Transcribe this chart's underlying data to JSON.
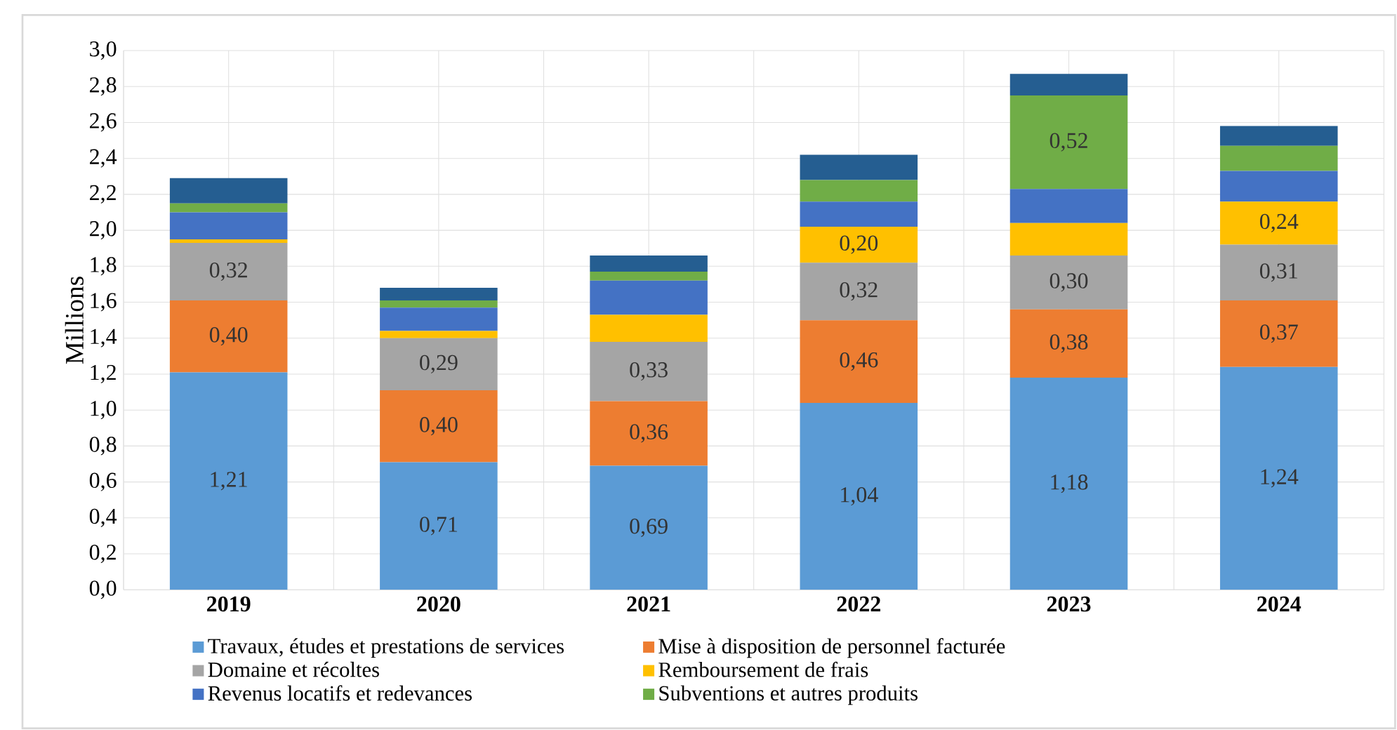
{
  "chart_data": {
    "type": "bar",
    "stacked": true,
    "ylabel": "Millions",
    "categories": [
      "2019",
      "2020",
      "2021",
      "2022",
      "2023",
      "2024"
    ],
    "ylim": [
      0,
      3.0
    ],
    "yticks": [
      {
        "value": 0,
        "label": "0,0"
      },
      {
        "value": 0.2,
        "label": "0,2"
      },
      {
        "value": 0.4,
        "label": "0,4"
      },
      {
        "value": 0.6,
        "label": "0,6"
      },
      {
        "value": 0.8,
        "label": "0,8"
      },
      {
        "value": 1.0,
        "label": "1,0"
      },
      {
        "value": 1.2,
        "label": "1,2"
      },
      {
        "value": 1.4,
        "label": "1,4"
      },
      {
        "value": 1.6,
        "label": "1,6"
      },
      {
        "value": 1.8,
        "label": "1,8"
      },
      {
        "value": 2.0,
        "label": "2,0"
      },
      {
        "value": 2.2,
        "label": "2,2"
      },
      {
        "value": 2.4,
        "label": "2,4"
      },
      {
        "value": 2.6,
        "label": "2,6"
      },
      {
        "value": 2.8,
        "label": "2,8"
      },
      {
        "value": 3.0,
        "label": "3,0"
      }
    ],
    "grid": true,
    "legend": "bottom",
    "series": [
      {
        "name": "Travaux, études et prestations de services",
        "color": "#5b9bd5",
        "values": [
          1.21,
          0.71,
          0.69,
          1.04,
          1.18,
          1.24
        ],
        "value_labels": [
          "1,21",
          "0,71",
          "0,69",
          "1,04",
          "1,18",
          "1,24"
        ]
      },
      {
        "name": "Mise à disposition de personnel facturée",
        "color": "#ed7d31",
        "values": [
          0.4,
          0.4,
          0.36,
          0.46,
          0.38,
          0.37
        ],
        "value_labels": [
          "0,40",
          "0,40",
          "0,36",
          "0,46",
          "0,38",
          "0,37"
        ]
      },
      {
        "name": "Domaine et récoltes",
        "color": "#a5a5a5",
        "values": [
          0.32,
          0.29,
          0.33,
          0.32,
          0.3,
          0.31
        ],
        "value_labels": [
          "0,32",
          "0,29",
          "0,33",
          "0,32",
          "0,30",
          "0,31"
        ]
      },
      {
        "name": "Remboursement de frais",
        "color": "#ffc000",
        "values": [
          0.02,
          0.04,
          0.15,
          0.2,
          0.18,
          0.24
        ],
        "value_labels": [
          null,
          null,
          null,
          "0,20",
          null,
          "0,24"
        ]
      },
      {
        "name": "Revenus locatifs et redevances",
        "color": "#4472c4",
        "values": [
          0.15,
          0.13,
          0.19,
          0.14,
          0.19,
          0.17
        ]
      },
      {
        "name": "Subventions et autres produits",
        "color": "#70ad47",
        "values": [
          0.05,
          0.04,
          0.05,
          0.12,
          0.52,
          0.14
        ],
        "value_labels": [
          null,
          null,
          null,
          null,
          "0,52",
          null
        ]
      },
      {
        "color": "#255e91",
        "values": [
          0.14,
          0.07,
          0.09,
          0.14,
          0.12,
          0.11
        ]
      }
    ]
  }
}
